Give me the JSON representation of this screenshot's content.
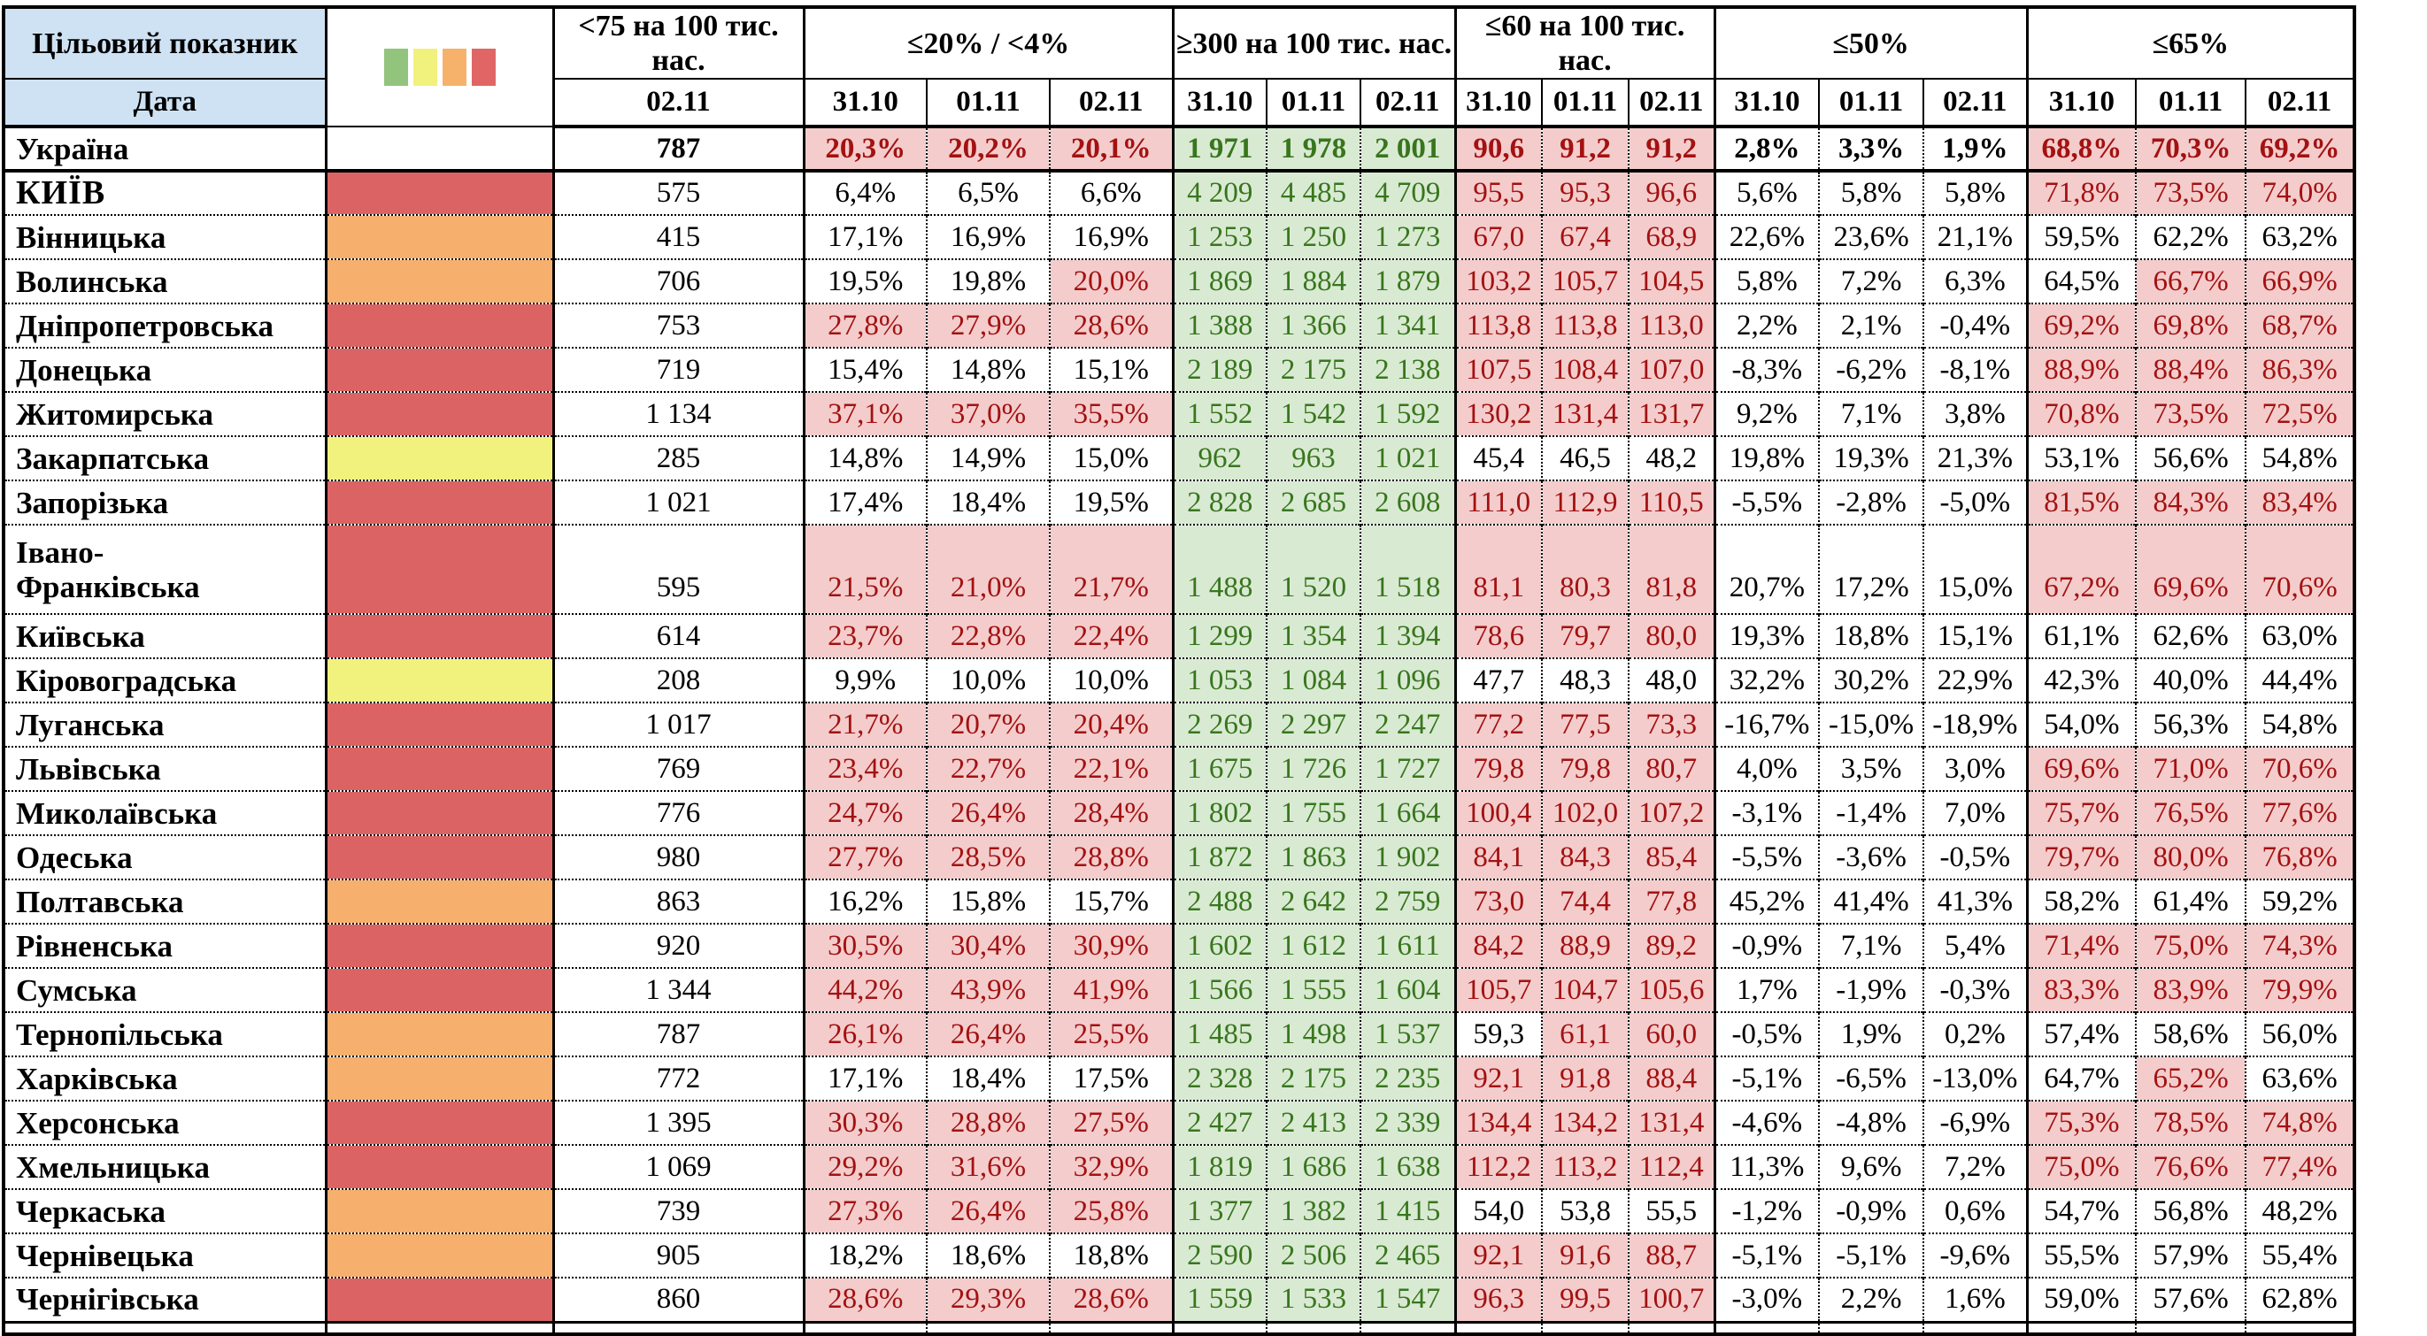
{
  "styles": {
    "bad_bg": "#F4CCCC",
    "bad_text": "#A31111",
    "good_bg": "#D9EAD3",
    "good_text": "#38761D",
    "header_blue": "#CFE2F3",
    "border_black": "#000000"
  },
  "legend": {
    "swatches": [
      {
        "name": "green",
        "color": "#93C47D"
      },
      {
        "name": "yellow",
        "color": "#F1F17E"
      },
      {
        "name": "orange",
        "color": "#F6B26B"
      },
      {
        "name": "red",
        "color": "#E06666"
      }
    ],
    "indicator_colors": {
      "red": "#DC6363",
      "orange": "#F6AF6C",
      "yellow": "#F1F17E"
    }
  },
  "header": {
    "target_label": "Цільовий показник",
    "date_label": "Дата",
    "groups": [
      {
        "label": "<75 на 100 тис. нас.",
        "dates": [
          "02.11"
        ]
      },
      {
        "label": "≤20% / <4%",
        "dates": [
          "31.10",
          "01.11",
          "02.11"
        ]
      },
      {
        "label": "≥300 на 100 тис. нас.",
        "dates": [
          "31.10",
          "01.11",
          "02.11"
        ]
      },
      {
        "label": "≤60 на 100 тис. нас.",
        "dates": [
          "31.10",
          "01.11",
          "02.11"
        ]
      },
      {
        "label": "≤50%",
        "dates": [
          "31.10",
          "01.11",
          "02.11"
        ]
      },
      {
        "label": "≤65%",
        "dates": [
          "31.10",
          "01.11",
          "02.11"
        ]
      }
    ]
  },
  "rows": [
    {
      "name": "Україна",
      "indicator": null,
      "bold": true,
      "values": [
        "787",
        "20,3%",
        "20,2%",
        "20,1%",
        "1 971",
        "1 978",
        "2 001",
        "90,6",
        "91,2",
        "91,2",
        "2,8%",
        "3,3%",
        "1,9%",
        "68,8%",
        "70,3%",
        "69,2%"
      ],
      "styles": [
        "p",
        "b",
        "b",
        "b",
        "g",
        "g",
        "g",
        "b",
        "b",
        "b",
        "p",
        "p",
        "p",
        "b",
        "b",
        "b"
      ]
    },
    {
      "name": "КИЇВ",
      "indicator": "red",
      "big": true,
      "values": [
        "575",
        "6,4%",
        "6,5%",
        "6,6%",
        "4 209",
        "4 485",
        "4 709",
        "95,5",
        "95,3",
        "96,6",
        "5,6%",
        "5,8%",
        "5,8%",
        "71,8%",
        "73,5%",
        "74,0%"
      ],
      "styles": [
        "p",
        "p",
        "p",
        "p",
        "g",
        "g",
        "g",
        "b",
        "b",
        "b",
        "p",
        "p",
        "p",
        "b",
        "b",
        "b"
      ]
    },
    {
      "name": "Вінницька",
      "indicator": "orange",
      "values": [
        "415",
        "17,1%",
        "16,9%",
        "16,9%",
        "1 253",
        "1 250",
        "1 273",
        "67,0",
        "67,4",
        "68,9",
        "22,6%",
        "23,6%",
        "21,1%",
        "59,5%",
        "62,2%",
        "63,2%"
      ],
      "styles": [
        "p",
        "p",
        "p",
        "p",
        "g",
        "g",
        "g",
        "b",
        "b",
        "b",
        "p",
        "p",
        "p",
        "p",
        "p",
        "p"
      ]
    },
    {
      "name": "Волинська",
      "indicator": "orange",
      "values": [
        "706",
        "19,5%",
        "19,8%",
        "20,0%",
        "1 869",
        "1 884",
        "1 879",
        "103,2",
        "105,7",
        "104,5",
        "5,8%",
        "7,2%",
        "6,3%",
        "64,5%",
        "66,7%",
        "66,9%"
      ],
      "styles": [
        "p",
        "p",
        "p",
        "b",
        "g",
        "g",
        "g",
        "b",
        "b",
        "b",
        "p",
        "p",
        "p",
        "p",
        "b",
        "b"
      ]
    },
    {
      "name": "Дніпропетровська",
      "indicator": "red",
      "values": [
        "753",
        "27,8%",
        "27,9%",
        "28,6%",
        "1 388",
        "1 366",
        "1 341",
        "113,8",
        "113,8",
        "113,0",
        "2,2%",
        "2,1%",
        "-0,4%",
        "69,2%",
        "69,8%",
        "68,7%"
      ],
      "styles": [
        "p",
        "b",
        "b",
        "b",
        "g",
        "g",
        "g",
        "b",
        "b",
        "b",
        "p",
        "p",
        "p",
        "b",
        "b",
        "b"
      ]
    },
    {
      "name": "Донецька",
      "indicator": "red",
      "values": [
        "719",
        "15,4%",
        "14,8%",
        "15,1%",
        "2 189",
        "2 175",
        "2 138",
        "107,5",
        "108,4",
        "107,0",
        "-8,3%",
        "-6,2%",
        "-8,1%",
        "88,9%",
        "88,4%",
        "86,3%"
      ],
      "styles": [
        "p",
        "p",
        "p",
        "p",
        "g",
        "g",
        "g",
        "b",
        "b",
        "b",
        "p",
        "p",
        "p",
        "b",
        "b",
        "b"
      ]
    },
    {
      "name": "Житомирська",
      "indicator": "red",
      "values": [
        "1 134",
        "37,1%",
        "37,0%",
        "35,5%",
        "1 552",
        "1 542",
        "1 592",
        "130,2",
        "131,4",
        "131,7",
        "9,2%",
        "7,1%",
        "3,8%",
        "70,8%",
        "73,5%",
        "72,5%"
      ],
      "styles": [
        "p",
        "b",
        "b",
        "b",
        "g",
        "g",
        "g",
        "b",
        "b",
        "b",
        "p",
        "p",
        "p",
        "b",
        "b",
        "b"
      ]
    },
    {
      "name": "Закарпатська",
      "indicator": "yellow",
      "values": [
        "285",
        "14,8%",
        "14,9%",
        "15,0%",
        "962",
        "963",
        "1 021",
        "45,4",
        "46,5",
        "48,2",
        "19,8%",
        "19,3%",
        "21,3%",
        "53,1%",
        "56,6%",
        "54,8%"
      ],
      "styles": [
        "p",
        "p",
        "p",
        "p",
        "g",
        "g",
        "g",
        "p",
        "p",
        "p",
        "p",
        "p",
        "p",
        "p",
        "p",
        "p"
      ]
    },
    {
      "name": "Запорізька",
      "indicator": "red",
      "values": [
        "1 021",
        "17,4%",
        "18,4%",
        "19,5%",
        "2 828",
        "2 685",
        "2 608",
        "111,0",
        "112,9",
        "110,5",
        "-5,5%",
        "-2,8%",
        "-5,0%",
        "81,5%",
        "84,3%",
        "83,4%"
      ],
      "styles": [
        "p",
        "p",
        "p",
        "p",
        "g",
        "g",
        "g",
        "b",
        "b",
        "b",
        "p",
        "p",
        "p",
        "b",
        "b",
        "b"
      ]
    },
    {
      "name": "Івано-\nФранківська",
      "indicator": "red",
      "tall": true,
      "values": [
        "595",
        "21,5%",
        "21,0%",
        "21,7%",
        "1 488",
        "1 520",
        "1 518",
        "81,1",
        "80,3",
        "81,8",
        "20,7%",
        "17,2%",
        "15,0%",
        "67,2%",
        "69,6%",
        "70,6%"
      ],
      "styles": [
        "p",
        "b",
        "b",
        "b",
        "g",
        "g",
        "g",
        "b",
        "b",
        "b",
        "p",
        "p",
        "p",
        "b",
        "b",
        "b"
      ]
    },
    {
      "name": "Київська",
      "indicator": "red",
      "values": [
        "614",
        "23,7%",
        "22,8%",
        "22,4%",
        "1 299",
        "1 354",
        "1 394",
        "78,6",
        "79,7",
        "80,0",
        "19,3%",
        "18,8%",
        "15,1%",
        "61,1%",
        "62,6%",
        "63,0%"
      ],
      "styles": [
        "p",
        "b",
        "b",
        "b",
        "g",
        "g",
        "g",
        "b",
        "b",
        "b",
        "p",
        "p",
        "p",
        "p",
        "p",
        "p"
      ]
    },
    {
      "name": "Кіровоградська",
      "indicator": "yellow",
      "values": [
        "208",
        "9,9%",
        "10,0%",
        "10,0%",
        "1 053",
        "1 084",
        "1 096",
        "47,7",
        "48,3",
        "48,0",
        "32,2%",
        "30,2%",
        "22,9%",
        "42,3%",
        "40,0%",
        "44,4%"
      ],
      "styles": [
        "p",
        "p",
        "p",
        "p",
        "g",
        "g",
        "g",
        "p",
        "p",
        "p",
        "p",
        "p",
        "p",
        "p",
        "p",
        "p"
      ]
    },
    {
      "name": "Луганська",
      "indicator": "red",
      "values": [
        "1 017",
        "21,7%",
        "20,7%",
        "20,4%",
        "2 269",
        "2 297",
        "2 247",
        "77,2",
        "77,5",
        "73,3",
        "-16,7%",
        "-15,0%",
        "-18,9%",
        "54,0%",
        "56,3%",
        "54,8%"
      ],
      "styles": [
        "p",
        "b",
        "b",
        "b",
        "g",
        "g",
        "g",
        "b",
        "b",
        "b",
        "p",
        "p",
        "p",
        "p",
        "p",
        "p"
      ]
    },
    {
      "name": "Львівська",
      "indicator": "red",
      "values": [
        "769",
        "23,4%",
        "22,7%",
        "22,1%",
        "1 675",
        "1 726",
        "1 727",
        "79,8",
        "79,8",
        "80,7",
        "4,0%",
        "3,5%",
        "3,0%",
        "69,6%",
        "71,0%",
        "70,6%"
      ],
      "styles": [
        "p",
        "b",
        "b",
        "b",
        "g",
        "g",
        "g",
        "b",
        "b",
        "b",
        "p",
        "p",
        "p",
        "b",
        "b",
        "b"
      ]
    },
    {
      "name": "Миколаївська",
      "indicator": "red",
      "values": [
        "776",
        "24,7%",
        "26,4%",
        "28,4%",
        "1 802",
        "1 755",
        "1 664",
        "100,4",
        "102,0",
        "107,2",
        "-3,1%",
        "-1,4%",
        "7,0%",
        "75,7%",
        "76,5%",
        "77,6%"
      ],
      "styles": [
        "p",
        "b",
        "b",
        "b",
        "g",
        "g",
        "g",
        "b",
        "b",
        "b",
        "p",
        "p",
        "p",
        "b",
        "b",
        "b"
      ]
    },
    {
      "name": "Одеська",
      "indicator": "red",
      "values": [
        "980",
        "27,7%",
        "28,5%",
        "28,8%",
        "1 872",
        "1 863",
        "1 902",
        "84,1",
        "84,3",
        "85,4",
        "-5,5%",
        "-3,6%",
        "-0,5%",
        "79,7%",
        "80,0%",
        "76,8%"
      ],
      "styles": [
        "p",
        "b",
        "b",
        "b",
        "g",
        "g",
        "g",
        "b",
        "b",
        "b",
        "p",
        "p",
        "p",
        "b",
        "b",
        "b"
      ]
    },
    {
      "name": "Полтавська",
      "indicator": "orange",
      "values": [
        "863",
        "16,2%",
        "15,8%",
        "15,7%",
        "2 488",
        "2 642",
        "2 759",
        "73,0",
        "74,4",
        "77,8",
        "45,2%",
        "41,4%",
        "41,3%",
        "58,2%",
        "61,4%",
        "59,2%"
      ],
      "styles": [
        "p",
        "p",
        "p",
        "p",
        "g",
        "g",
        "g",
        "b",
        "b",
        "b",
        "p",
        "p",
        "p",
        "p",
        "p",
        "p"
      ]
    },
    {
      "name": "Рівненська",
      "indicator": "red",
      "values": [
        "920",
        "30,5%",
        "30,4%",
        "30,9%",
        "1 602",
        "1 612",
        "1 611",
        "84,2",
        "88,9",
        "89,2",
        "-0,9%",
        "7,1%",
        "5,4%",
        "71,4%",
        "75,0%",
        "74,3%"
      ],
      "styles": [
        "p",
        "b",
        "b",
        "b",
        "g",
        "g",
        "g",
        "b",
        "b",
        "b",
        "p",
        "p",
        "p",
        "b",
        "b",
        "b"
      ]
    },
    {
      "name": "Сумська",
      "indicator": "red",
      "values": [
        "1 344",
        "44,2%",
        "43,9%",
        "41,9%",
        "1 566",
        "1 555",
        "1 604",
        "105,7",
        "104,7",
        "105,6",
        "1,7%",
        "-1,9%",
        "-0,3%",
        "83,3%",
        "83,9%",
        "79,9%"
      ],
      "styles": [
        "p",
        "b",
        "b",
        "b",
        "g",
        "g",
        "g",
        "b",
        "b",
        "b",
        "p",
        "p",
        "p",
        "b",
        "b",
        "b"
      ]
    },
    {
      "name": "Тернопільська",
      "indicator": "orange",
      "values": [
        "787",
        "26,1%",
        "26,4%",
        "25,5%",
        "1 485",
        "1 498",
        "1 537",
        "59,3",
        "61,1",
        "60,0",
        "-0,5%",
        "1,9%",
        "0,2%",
        "57,4%",
        "58,6%",
        "56,0%"
      ],
      "styles": [
        "p",
        "b",
        "b",
        "b",
        "g",
        "g",
        "g",
        "p",
        "b",
        "b",
        "p",
        "p",
        "p",
        "p",
        "p",
        "p"
      ]
    },
    {
      "name": "Харківська",
      "indicator": "orange",
      "values": [
        "772",
        "17,1%",
        "18,4%",
        "17,5%",
        "2 328",
        "2 175",
        "2 235",
        "92,1",
        "91,8",
        "88,4",
        "-5,1%",
        "-6,5%",
        "-13,0%",
        "64,7%",
        "65,2%",
        "63,6%"
      ],
      "styles": [
        "p",
        "p",
        "p",
        "p",
        "g",
        "g",
        "g",
        "b",
        "b",
        "b",
        "p",
        "p",
        "p",
        "p",
        "b",
        "p"
      ]
    },
    {
      "name": "Херсонська",
      "indicator": "red",
      "values": [
        "1 395",
        "30,3%",
        "28,8%",
        "27,5%",
        "2 427",
        "2 413",
        "2 339",
        "134,4",
        "134,2",
        "131,4",
        "-4,6%",
        "-4,8%",
        "-6,9%",
        "75,3%",
        "78,5%",
        "74,8%"
      ],
      "styles": [
        "p",
        "b",
        "b",
        "b",
        "g",
        "g",
        "g",
        "b",
        "b",
        "b",
        "p",
        "p",
        "p",
        "b",
        "b",
        "b"
      ]
    },
    {
      "name": "Хмельницька",
      "indicator": "red",
      "values": [
        "1 069",
        "29,2%",
        "31,6%",
        "32,9%",
        "1 819",
        "1 686",
        "1 638",
        "112,2",
        "113,2",
        "112,4",
        "11,3%",
        "9,6%",
        "7,2%",
        "75,0%",
        "76,6%",
        "77,4%"
      ],
      "styles": [
        "p",
        "b",
        "b",
        "b",
        "g",
        "g",
        "g",
        "b",
        "b",
        "b",
        "p",
        "p",
        "p",
        "b",
        "b",
        "b"
      ]
    },
    {
      "name": "Черкаська",
      "indicator": "orange",
      "values": [
        "739",
        "27,3%",
        "26,4%",
        "25,8%",
        "1 377",
        "1 382",
        "1 415",
        "54,0",
        "53,8",
        "55,5",
        "-1,2%",
        "-0,9%",
        "0,6%",
        "54,7%",
        "56,8%",
        "48,2%"
      ],
      "styles": [
        "p",
        "b",
        "b",
        "b",
        "g",
        "g",
        "g",
        "p",
        "p",
        "p",
        "p",
        "p",
        "p",
        "p",
        "p",
        "p"
      ]
    },
    {
      "name": "Чернівецька",
      "indicator": "orange",
      "values": [
        "905",
        "18,2%",
        "18,6%",
        "18,8%",
        "2 590",
        "2 506",
        "2 465",
        "92,1",
        "91,6",
        "88,7",
        "-5,1%",
        "-5,1%",
        "-9,6%",
        "55,5%",
        "57,9%",
        "55,4%"
      ],
      "styles": [
        "p",
        "p",
        "p",
        "p",
        "g",
        "g",
        "g",
        "b",
        "b",
        "b",
        "p",
        "p",
        "p",
        "p",
        "p",
        "p"
      ]
    },
    {
      "name": "Чернігівська",
      "indicator": "red",
      "values": [
        "860",
        "28,6%",
        "29,3%",
        "28,6%",
        "1 559",
        "1 533",
        "1 547",
        "96,3",
        "99,5",
        "100,7",
        "-3,0%",
        "2,2%",
        "1,6%",
        "59,0%",
        "57,6%",
        "62,8%"
      ],
      "styles": [
        "p",
        "b",
        "b",
        "b",
        "g",
        "g",
        "g",
        "b",
        "b",
        "b",
        "p",
        "p",
        "p",
        "p",
        "p",
        "p"
      ]
    }
  ]
}
